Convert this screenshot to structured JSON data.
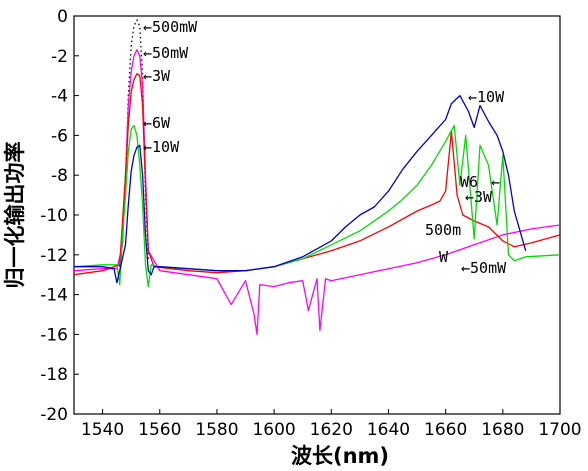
{
  "chart_data": {
    "type": "line",
    "xlabel": "波长(nm)",
    "ylabel": "归一化输出功率",
    "xlim": [
      1530,
      1700
    ],
    "ylim": [
      -20,
      0
    ],
    "xticks": [
      "1540",
      "1560",
      "1580",
      "1600",
      "1620",
      "1640",
      "1660",
      "1680",
      "1700"
    ],
    "yticks": [
      "0",
      "-2",
      "-4",
      "-6",
      "-8",
      "-10",
      "-12",
      "-14",
      "-16",
      "-18",
      "-20"
    ],
    "grid": false,
    "legend": "none",
    "series": [
      {
        "name": "500mW",
        "color": "#000000",
        "dash": "dotted",
        "x": [
          1546,
          1548,
          1549,
          1550,
          1551,
          1552,
          1553,
          1554,
          1555,
          1556
        ],
        "y": [
          -12.6,
          -9.0,
          -4.0,
          -1.5,
          -0.5,
          -0.2,
          -0.5,
          -3.0,
          -9.0,
          -12.3
        ]
      },
      {
        "name": "50mW",
        "color": "#ff00ff",
        "x": [
          1530,
          1540,
          1545,
          1547,
          1548,
          1549,
          1550,
          1551,
          1552,
          1553,
          1554,
          1555,
          1556,
          1560,
          1570,
          1580,
          1585,
          1590,
          1593,
          1594,
          1595,
          1600,
          1605,
          1610,
          1612,
          1615,
          1616,
          1618,
          1620,
          1630,
          1640,
          1650,
          1660,
          1670,
          1680,
          1690,
          1700
        ],
        "y": [
          -12.8,
          -12.7,
          -12.7,
          -11.5,
          -8.0,
          -4.5,
          -2.8,
          -2.0,
          -1.7,
          -2.0,
          -3.5,
          -8.0,
          -11.8,
          -12.8,
          -13.0,
          -13.2,
          -14.5,
          -13.3,
          -15.0,
          -16.0,
          -13.5,
          -13.6,
          -13.4,
          -13.3,
          -14.8,
          -13.2,
          -15.8,
          -13.2,
          -13.3,
          -13.0,
          -12.7,
          -12.4,
          -12.0,
          -11.5,
          -11.0,
          -10.7,
          -10.5
        ]
      },
      {
        "name": "3W",
        "color": "#ff0000",
        "x": [
          1530,
          1540,
          1546,
          1548,
          1549,
          1550,
          1551,
          1552,
          1553,
          1554,
          1555,
          1556,
          1558,
          1570,
          1580,
          1590,
          1600,
          1610,
          1620,
          1630,
          1640,
          1650,
          1655,
          1658,
          1660,
          1662,
          1664,
          1666,
          1670,
          1675,
          1680,
          1684,
          1690,
          1700
        ],
        "y": [
          -13.0,
          -12.8,
          -12.5,
          -8.0,
          -5.5,
          -3.8,
          -3.2,
          -2.9,
          -3.0,
          -4.5,
          -8.5,
          -11.8,
          -12.6,
          -12.8,
          -12.9,
          -12.8,
          -12.6,
          -12.2,
          -11.8,
          -11.3,
          -10.6,
          -9.8,
          -9.5,
          -9.3,
          -8.8,
          -5.8,
          -9.0,
          -10.0,
          -10.3,
          -10.6,
          -11.3,
          -11.6,
          -11.4,
          -11.0
        ]
      },
      {
        "name": "6W",
        "color": "#00dd00",
        "x": [
          1530,
          1540,
          1545,
          1546,
          1547,
          1548,
          1549,
          1550,
          1551,
          1552,
          1553,
          1554,
          1555,
          1556,
          1557,
          1560,
          1570,
          1580,
          1590,
          1600,
          1610,
          1620,
          1630,
          1640,
          1645,
          1650,
          1655,
          1660,
          1663,
          1665,
          1667,
          1670,
          1672,
          1675,
          1678,
          1680,
          1682,
          1684,
          1688,
          1700
        ],
        "y": [
          -12.6,
          -12.5,
          -12.5,
          -13.5,
          -11.0,
          -9.0,
          -6.8,
          -5.7,
          -5.5,
          -6.0,
          -7.5,
          -9.5,
          -12.5,
          -13.6,
          -12.5,
          -12.6,
          -12.7,
          -12.8,
          -12.8,
          -12.6,
          -12.2,
          -11.5,
          -10.8,
          -9.8,
          -9.2,
          -8.5,
          -7.5,
          -6.3,
          -5.5,
          -8.5,
          -6.0,
          -11.2,
          -6.5,
          -7.5,
          -10.5,
          -7.0,
          -12.0,
          -12.3,
          -12.1,
          -12.0
        ]
      },
      {
        "name": "10W",
        "color": "#0000cc",
        "x": [
          1530,
          1540,
          1544,
          1545,
          1546,
          1548,
          1549,
          1550,
          1551,
          1552,
          1553,
          1554,
          1555,
          1556,
          1557,
          1558,
          1560,
          1570,
          1580,
          1590,
          1600,
          1610,
          1620,
          1625,
          1630,
          1635,
          1640,
          1645,
          1650,
          1655,
          1660,
          1662,
          1665,
          1668,
          1670,
          1672,
          1675,
          1678,
          1680,
          1682,
          1684,
          1686,
          1688
        ],
        "y": [
          -12.6,
          -12.6,
          -12.7,
          -13.4,
          -12.8,
          -11.5,
          -9.5,
          -7.8,
          -7.0,
          -6.6,
          -6.5,
          -8.0,
          -11.0,
          -12.8,
          -13.0,
          -12.6,
          -12.6,
          -12.7,
          -12.8,
          -12.8,
          -12.6,
          -12.1,
          -11.3,
          -10.6,
          -10.0,
          -9.6,
          -8.8,
          -7.7,
          -6.8,
          -6.0,
          -5.2,
          -4.4,
          -4.0,
          -4.8,
          -5.6,
          -4.5,
          -5.3,
          -6.0,
          -6.8,
          -8.0,
          -9.8,
          -10.8,
          -11.8
        ]
      }
    ],
    "annotations": [
      "←500mW",
      "←50mW",
      "←3W",
      "←6W",
      "←10W",
      "←10W",
      "W6",
      "←",
      "←3W",
      "500m",
      "W",
      "←50mW"
    ]
  }
}
